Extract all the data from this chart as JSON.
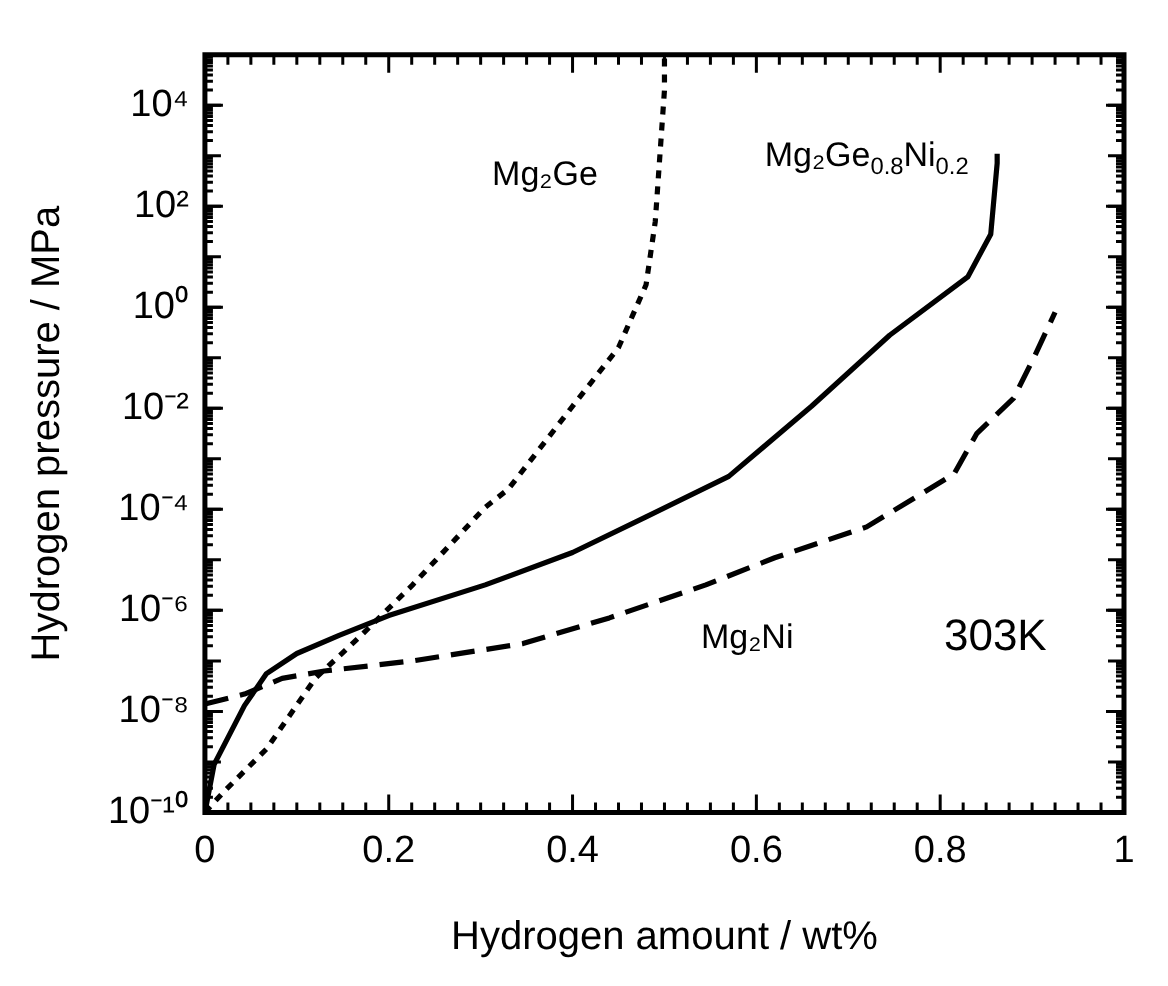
{
  "chart_data": {
    "type": "line",
    "xlabel": "Hydrogen amount / wt%",
    "ylabel": "Hydrogen pressure / MPa",
    "log": "y",
    "grid": false,
    "legend": false,
    "marker": "none",
    "xlim": [
      0,
      1
    ],
    "xticks": [
      0,
      0.2,
      0.4,
      0.6,
      0.8,
      1
    ],
    "ylim": [
      1e-10,
      100000.0
    ],
    "yticks": [
      {
        "value": 1e-10,
        "label": "10⁻¹⁰"
      },
      {
        "value": 1e-08,
        "label": "10⁻⁸"
      },
      {
        "value": 1e-06,
        "label": "10⁻⁶"
      },
      {
        "value": 0.0001,
        "label": "10⁻⁴"
      },
      {
        "value": 0.01,
        "label": "10⁻²"
      },
      {
        "value": 1,
        "label": "10⁰"
      },
      {
        "value": 100,
        "label": "10²"
      },
      {
        "value": 10000,
        "label": "10⁴"
      }
    ],
    "annotations": [
      "303K"
    ],
    "series": [
      {
        "name": "Mg₂Ge",
        "color": "#000000",
        "line_style": "dotted",
        "x": [
          0,
          0.02,
          0.067,
          0.12,
          0.17,
          0.226,
          0.305,
          0.33,
          0.4,
          0.45,
          0.48,
          0.49,
          0.5,
          0.5
        ],
        "values": [
          1e-10,
          2.5e-10,
          1.8e-09,
          4.5e-08,
          3.2e-07,
          3.2e-06,
          0.00011,
          0.00025,
          0.011,
          0.16,
          2.8,
          50,
          20000,
          100000
        ]
      },
      {
        "name": "Mg₂Ge$_{0.8}$Ni$_{0.2}$",
        "color": "#000000",
        "line_style": "solid",
        "x": [
          0,
          0.01,
          0.043,
          0.067,
          0.1,
          0.146,
          0.2,
          0.305,
          0.4,
          0.48,
          0.57,
          0.66,
          0.745,
          0.83,
          0.855,
          0.862,
          0.862
        ],
        "values": [
          1e-10,
          8.9e-10,
          1.3e-08,
          5.6e-08,
          1.4e-07,
          3.2e-07,
          7.9e-07,
          3.2e-06,
          1.4e-05,
          7.1e-05,
          0.00045,
          0.011,
          0.28,
          4,
          28,
          710,
          1100
        ]
      },
      {
        "name": "Mg₂Ni",
        "color": "#000000",
        "line_style": "dashed",
        "x": [
          0,
          0.043,
          0.084,
          0.13,
          0.226,
          0.346,
          0.44,
          0.545,
          0.62,
          0.72,
          0.815,
          0.84,
          0.88,
          0.903,
          0.925
        ],
        "values": [
          1.4e-08,
          2.2e-08,
          4.5e-08,
          6.3e-08,
          1e-07,
          2.2e-07,
          7.1e-07,
          3.2e-06,
          1.1e-05,
          4.5e-05,
          0.0005,
          0.0032,
          0.016,
          0.11,
          0.8
        ]
      }
    ]
  }
}
